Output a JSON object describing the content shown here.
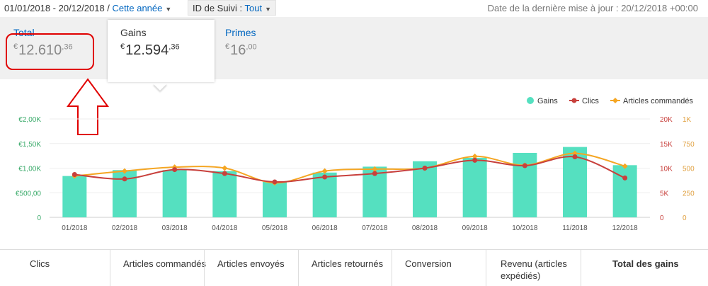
{
  "toolbar": {
    "date_range": "01/01/2018 - 20/12/2018",
    "period": "Cette année",
    "tracking_label": "ID de Suivi :",
    "tracking_value": "Tout",
    "last_update": "Date de la dernière mise à jour : 20/12/2018 +00:00"
  },
  "tabs": {
    "total": {
      "label": "Total",
      "currency": "€",
      "amount_main": "12.610",
      "amount_cents": ",36"
    },
    "gains": {
      "label": "Gains",
      "currency": "€",
      "amount_main": "12.594",
      "amount_cents": ",36"
    },
    "primes": {
      "label": "Primes",
      "currency": "€",
      "amount_main": "16",
      "amount_cents": ",00"
    }
  },
  "colors": {
    "bar": "#55e0c0",
    "clics": "#c8403c",
    "articles": "#f5a623",
    "left_axis": "#3aaa6a",
    "right_axis1": "#c8403c",
    "right_axis2": "#e0a040",
    "annotation": "#e00000"
  },
  "chart_data": {
    "type": "bar",
    "categories": [
      "01/2018",
      "02/2018",
      "03/2018",
      "04/2018",
      "05/2018",
      "06/2018",
      "07/2018",
      "08/2018",
      "09/2018",
      "10/2018",
      "11/2018",
      "12/2018"
    ],
    "series": [
      {
        "name": "Gains",
        "type": "bar",
        "axis": "left",
        "values": [
          840,
          960,
          960,
          940,
          720,
          910,
          1030,
          1140,
          1210,
          1310,
          1430,
          1060
        ]
      },
      {
        "name": "Clics",
        "type": "line",
        "axis": "right1",
        "values": [
          8700,
          7800,
          9700,
          8900,
          7200,
          8200,
          8900,
          10000,
          11600,
          10500,
          12300,
          8000
        ]
      },
      {
        "name": "Articles commandés",
        "type": "line",
        "axis": "right2",
        "values": [
          420,
          470,
          510,
          500,
          350,
          470,
          490,
          500,
          620,
          530,
          650,
          520
        ]
      }
    ],
    "left_axis": {
      "ticks": [
        "0",
        "€500,00",
        "€1,00K",
        "€1,50K",
        "€2,00K"
      ],
      "range": [
        0,
        2000
      ]
    },
    "right_axis1": {
      "ticks": [
        "0",
        "5K",
        "10K",
        "15K",
        "20K"
      ],
      "range": [
        0,
        20000
      ]
    },
    "right_axis2": {
      "ticks": [
        "0",
        "250",
        "500",
        "750",
        "1K"
      ],
      "range": [
        0,
        1000
      ]
    },
    "legend": {
      "position": "top-right",
      "items": [
        "Gains",
        "Clics",
        "Articles commandés"
      ]
    }
  },
  "columns": [
    "Clics",
    "Articles commandés",
    "Articles envoyés",
    "Articles retournés",
    "Conversion",
    "Revenu (articles expédiés)",
    "Total des gains"
  ]
}
